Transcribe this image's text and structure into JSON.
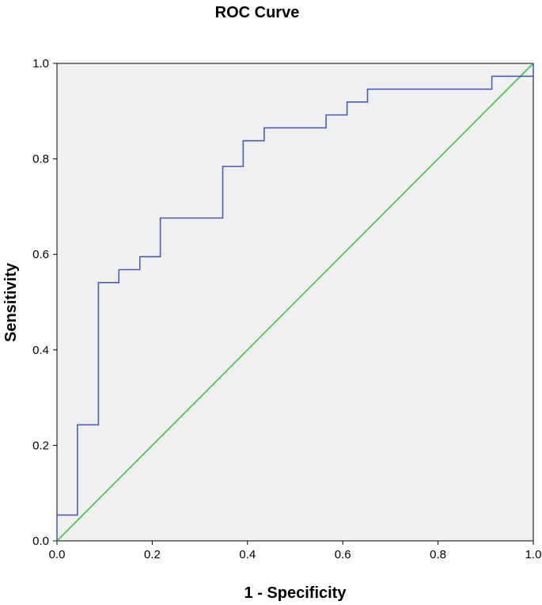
{
  "chart_data": {
    "type": "line",
    "title": "ROC Curve",
    "xlabel": "1 - Specificity",
    "ylabel": "Sensitivity",
    "xlim": [
      0,
      1
    ],
    "ylim": [
      0,
      1
    ],
    "x_ticks": [
      "0.0",
      "0.2",
      "0.4",
      "0.6",
      "0.8",
      "1.0"
    ],
    "y_ticks": [
      "0.0",
      "0.2",
      "0.4",
      "0.6",
      "0.8",
      "1.0"
    ],
    "grid": false,
    "legend": "none",
    "plot_background": "#f0f0f0",
    "series": [
      {
        "color": "#4a5eb8",
        "x": [
          0.0,
          0.0,
          0.043,
          0.043,
          0.087,
          0.087,
          0.13,
          0.13,
          0.174,
          0.174,
          0.217,
          0.217,
          0.348,
          0.348,
          0.391,
          0.391,
          0.435,
          0.435,
          0.565,
          0.565,
          0.609,
          0.609,
          0.652,
          0.652,
          0.913,
          0.913,
          1.0,
          1.0
        ],
        "y": [
          0.0,
          0.054,
          0.054,
          0.243,
          0.243,
          0.541,
          0.541,
          0.568,
          0.568,
          0.595,
          0.595,
          0.676,
          0.676,
          0.784,
          0.784,
          0.838,
          0.838,
          0.865,
          0.865,
          0.892,
          0.892,
          0.919,
          0.919,
          0.946,
          0.946,
          0.973,
          0.973,
          1.0
        ]
      },
      {
        "color": "#3cc444",
        "x": [
          0.0,
          1.0
        ],
        "y": [
          0.0,
          1.0
        ]
      }
    ]
  }
}
